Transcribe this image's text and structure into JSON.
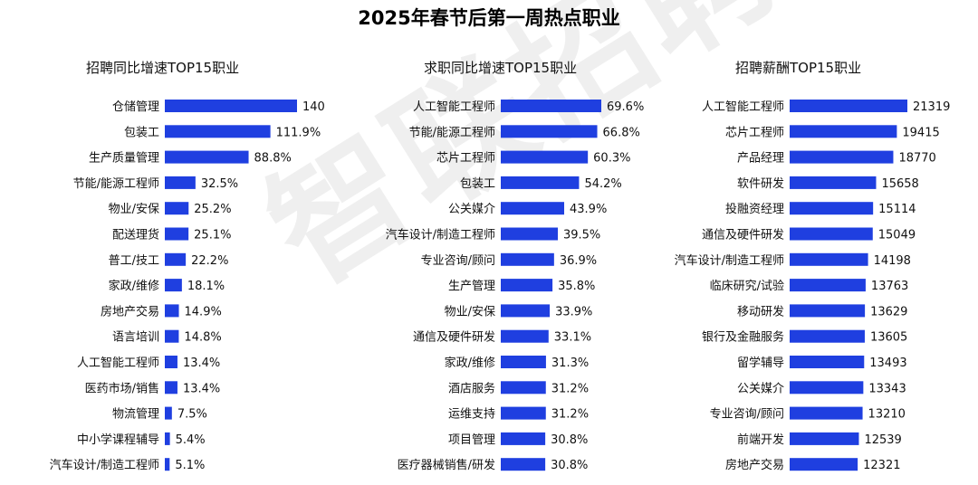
{
  "title": "2025年春节后第一周热点职业",
  "watermark": "智联招聘",
  "bar_color": "#1f3fe0",
  "chart_data": [
    {
      "type": "bar",
      "orientation": "horizontal",
      "title": "招聘同比增速TOP15职业",
      "categories": [
        "仓储管理",
        "包装工",
        "生产质量管理",
        "节能/能源工程师",
        "物业/安保",
        "配送理货",
        "普工/技工",
        "家政/维修",
        "房地产交易",
        "语言培训",
        "人工智能工程师",
        "医药市场/销售",
        "物流管理",
        "中小学课程辅导",
        "汽车设计/制造工程师"
      ],
      "values": [
        140.1,
        111.9,
        88.8,
        32.5,
        25.2,
        25.1,
        22.2,
        18.1,
        14.9,
        14.8,
        13.4,
        13.4,
        7.5,
        5.4,
        5.1
      ],
      "value_labels": [
        "140.1%",
        "111.9%",
        "88.8%",
        "32.5%",
        "25.2%",
        "25.1%",
        "22.2%",
        "18.1%",
        "14.9%",
        "14.8%",
        "13.4%",
        "13.4%",
        "7.5%",
        "5.4%",
        "5.1%"
      ],
      "xlim": [
        0,
        140.1
      ]
    },
    {
      "type": "bar",
      "orientation": "horizontal",
      "title": "求职同比增速TOP15职业",
      "categories": [
        "人工智能工程师",
        "节能/能源工程师",
        "芯片工程师",
        "包装工",
        "公关媒介",
        "汽车设计/制造工程师",
        "专业咨询/顾问",
        "生产管理",
        "物业/安保",
        "通信及硬件研发",
        "家政/维修",
        "酒店服务",
        "运维支持",
        "项目管理",
        "医疗器械销售/研发"
      ],
      "values": [
        69.6,
        66.8,
        60.3,
        54.2,
        43.9,
        39.5,
        36.9,
        35.8,
        33.9,
        33.1,
        31.3,
        31.2,
        31.2,
        30.8,
        30.8
      ],
      "value_labels": [
        "69.6%",
        "66.8%",
        "60.3%",
        "54.2%",
        "43.9%",
        "39.5%",
        "36.9%",
        "35.8%",
        "33.9%",
        "33.1%",
        "31.3%",
        "31.2%",
        "31.2%",
        "30.8%",
        "30.8%"
      ],
      "xlim": [
        0,
        69.6
      ]
    },
    {
      "type": "bar",
      "orientation": "horizontal",
      "title": "招聘薪酬TOP15职业",
      "categories": [
        "人工智能工程师",
        "芯片工程师",
        "产品经理",
        "软件研发",
        "投融资经理",
        "通信及硬件研发",
        "汽车设计/制造工程师",
        "临床研究/试验",
        "移动研发",
        "银行及金融服务",
        "留学辅导",
        "公关媒介",
        "专业咨询/顾问",
        "前端开发",
        "房地产交易"
      ],
      "values": [
        21319,
        19415,
        18770,
        15658,
        15114,
        15049,
        14198,
        13763,
        13629,
        13605,
        13493,
        13343,
        13210,
        12539,
        12321
      ],
      "value_labels": [
        "21319",
        "19415",
        "18770",
        "15658",
        "15114",
        "15049",
        "14198",
        "13763",
        "13629",
        "13605",
        "13493",
        "13343",
        "13210",
        "12539",
        "12321"
      ],
      "xlim": [
        0,
        21319
      ]
    }
  ]
}
